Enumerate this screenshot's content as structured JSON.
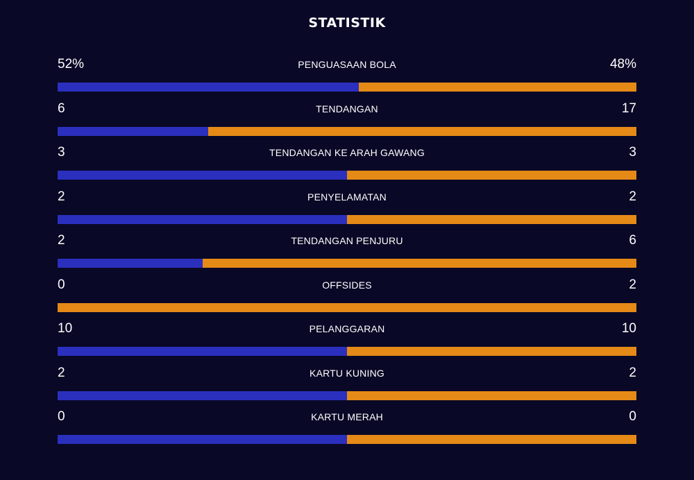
{
  "title": "STATISTIK",
  "colors": {
    "background": "#090826",
    "home": "#2b2fbe",
    "away": "#e58a17"
  },
  "stats": [
    {
      "label": "PENGUASAAN BOLA",
      "home": "52%",
      "away": "48%",
      "home_share": 0.52
    },
    {
      "label": "TENDANGAN",
      "home": "6",
      "away": "17",
      "home_share": 0.26
    },
    {
      "label": "TENDANGAN KE ARAH GAWANG",
      "home": "3",
      "away": "3",
      "home_share": 0.5
    },
    {
      "label": "PENYELAMATAN",
      "home": "2",
      "away": "2",
      "home_share": 0.5
    },
    {
      "label": "TENDANGAN PENJURU",
      "home": "2",
      "away": "6",
      "home_share": 0.25
    },
    {
      "label": "OFFSIDES",
      "home": "0",
      "away": "2",
      "home_share": 0
    },
    {
      "label": "PELANGGARAN",
      "home": "10",
      "away": "10",
      "home_share": 0.5
    },
    {
      "label": "KARTU KUNING",
      "home": "2",
      "away": "2",
      "home_share": 0.5
    },
    {
      "label": "KARTU MERAH",
      "home": "0",
      "away": "0",
      "home_share": 0.5
    }
  ]
}
